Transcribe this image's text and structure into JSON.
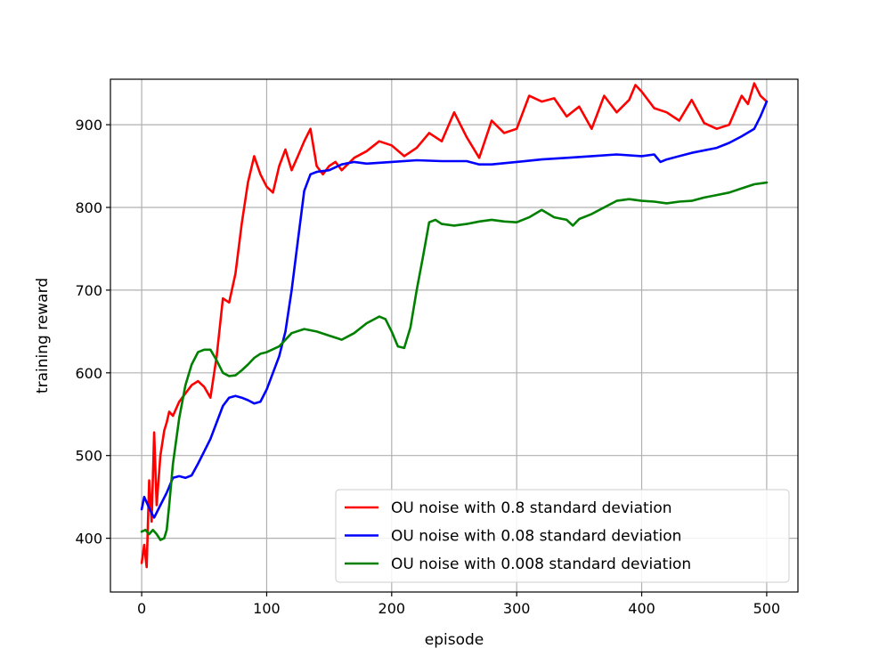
{
  "chart_data": {
    "type": "line",
    "title": "",
    "xlabel": "episode",
    "ylabel": "training reward",
    "xlim": [
      -25,
      525
    ],
    "ylim": [
      335,
      955
    ],
    "x_ticks": [
      0,
      100,
      200,
      300,
      400,
      500
    ],
    "y_ticks": [
      400,
      500,
      600,
      700,
      800,
      900
    ],
    "grid": true,
    "legend_position": "lower-right",
    "series": [
      {
        "name": "OU noise with 0.8 standard deviation",
        "color": "#ff0000",
        "x": [
          0,
          2,
          4,
          6,
          8,
          10,
          12,
          15,
          18,
          20,
          22,
          25,
          30,
          35,
          40,
          45,
          50,
          55,
          60,
          65,
          70,
          75,
          80,
          85,
          90,
          95,
          100,
          105,
          110,
          115,
          120,
          125,
          130,
          135,
          140,
          145,
          150,
          155,
          160,
          170,
          180,
          190,
          200,
          210,
          220,
          230,
          240,
          250,
          260,
          270,
          280,
          290,
          300,
          310,
          320,
          330,
          340,
          350,
          360,
          370,
          380,
          390,
          395,
          400,
          410,
          420,
          430,
          440,
          450,
          460,
          470,
          480,
          485,
          490,
          495,
          500
        ],
        "y": [
          370,
          392,
          365,
          470,
          420,
          528,
          440,
          500,
          530,
          540,
          553,
          548,
          565,
          575,
          585,
          590,
          583,
          570,
          620,
          690,
          685,
          720,
          780,
          830,
          862,
          840,
          825,
          818,
          850,
          870,
          845,
          862,
          880,
          895,
          850,
          840,
          850,
          855,
          845,
          860,
          868,
          880,
          875,
          862,
          872,
          890,
          880,
          915,
          885,
          860,
          905,
          890,
          895,
          935,
          928,
          932,
          910,
          922,
          895,
          935,
          915,
          930,
          948,
          940,
          920,
          915,
          905,
          930,
          902,
          895,
          900,
          935,
          925,
          950,
          935,
          928
        ]
      },
      {
        "name": "OU noise with 0.08 standard deviation",
        "color": "#0000ff",
        "x": [
          0,
          2,
          5,
          8,
          10,
          15,
          20,
          25,
          30,
          35,
          40,
          45,
          50,
          55,
          60,
          65,
          70,
          75,
          80,
          85,
          90,
          95,
          100,
          105,
          110,
          115,
          120,
          125,
          130,
          135,
          140,
          150,
          160,
          170,
          180,
          200,
          220,
          240,
          260,
          270,
          280,
          300,
          320,
          340,
          360,
          380,
          400,
          410,
          415,
          420,
          440,
          460,
          470,
          480,
          490,
          495,
          500
        ],
        "y": [
          435,
          450,
          440,
          430,
          425,
          440,
          455,
          473,
          475,
          473,
          476,
          490,
          505,
          520,
          540,
          560,
          570,
          572,
          570,
          567,
          563,
          565,
          580,
          600,
          620,
          650,
          700,
          760,
          820,
          840,
          843,
          845,
          852,
          855,
          853,
          855,
          857,
          856,
          856,
          852,
          852,
          855,
          858,
          860,
          862,
          864,
          862,
          864,
          855,
          858,
          866,
          872,
          878,
          886,
          895,
          910,
          928
        ]
      },
      {
        "name": "OU noise with 0.008 standard deviation",
        "color": "#008000",
        "x": [
          0,
          3,
          6,
          9,
          12,
          15,
          18,
          20,
          22,
          25,
          30,
          35,
          40,
          45,
          50,
          55,
          60,
          65,
          70,
          75,
          80,
          85,
          90,
          95,
          100,
          110,
          120,
          130,
          140,
          150,
          160,
          170,
          180,
          190,
          195,
          200,
          205,
          210,
          215,
          220,
          225,
          230,
          235,
          240,
          250,
          260,
          270,
          280,
          290,
          300,
          310,
          320,
          330,
          340,
          345,
          350,
          360,
          370,
          380,
          390,
          400,
          410,
          420,
          430,
          440,
          450,
          460,
          470,
          480,
          490,
          500
        ],
        "y": [
          408,
          410,
          405,
          410,
          405,
          398,
          400,
          410,
          440,
          490,
          545,
          585,
          610,
          625,
          628,
          628,
          615,
          600,
          596,
          597,
          603,
          610,
          618,
          623,
          625,
          632,
          648,
          653,
          650,
          645,
          640,
          648,
          660,
          668,
          665,
          650,
          632,
          630,
          655,
          700,
          740,
          782,
          785,
          780,
          778,
          780,
          783,
          785,
          783,
          782,
          788,
          797,
          788,
          785,
          778,
          786,
          792,
          800,
          808,
          810,
          808,
          807,
          805,
          807,
          808,
          812,
          815,
          818,
          823,
          828,
          830
        ]
      }
    ]
  }
}
